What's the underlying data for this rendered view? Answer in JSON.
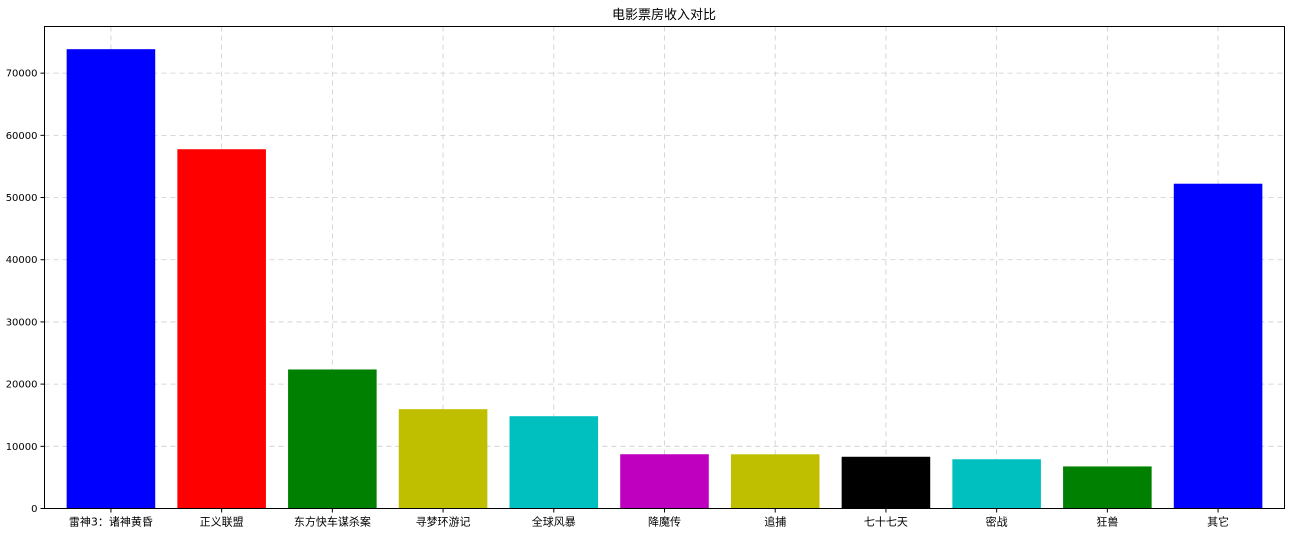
{
  "chart_data": {
    "type": "bar",
    "title": "电影票房收入对比",
    "xlabel": "",
    "ylabel": "",
    "categories": [
      "雷神3：诸神黄昏",
      "正义联盟",
      "东方快车谋杀案",
      "寻梦环游记",
      "全球风暴",
      "降魔传",
      "追捕",
      "七十七天",
      "密战",
      "狂兽",
      "其它"
    ],
    "values": [
      73853,
      57767,
      22354,
      15969,
      14839,
      8725,
      8716,
      8318,
      7916,
      6764,
      52222
    ],
    "colors": [
      "#0000ff",
      "#ff0000",
      "#008000",
      "#bfbf00",
      "#00bfbf",
      "#bf00bf",
      "#bfbf00",
      "#000000",
      "#00bfbf",
      "#008000",
      "#0000ff"
    ],
    "ylim": [
      0,
      77500
    ],
    "yticks": [
      0,
      10000,
      20000,
      30000,
      40000,
      50000,
      60000,
      70000
    ],
    "grid": true
  }
}
